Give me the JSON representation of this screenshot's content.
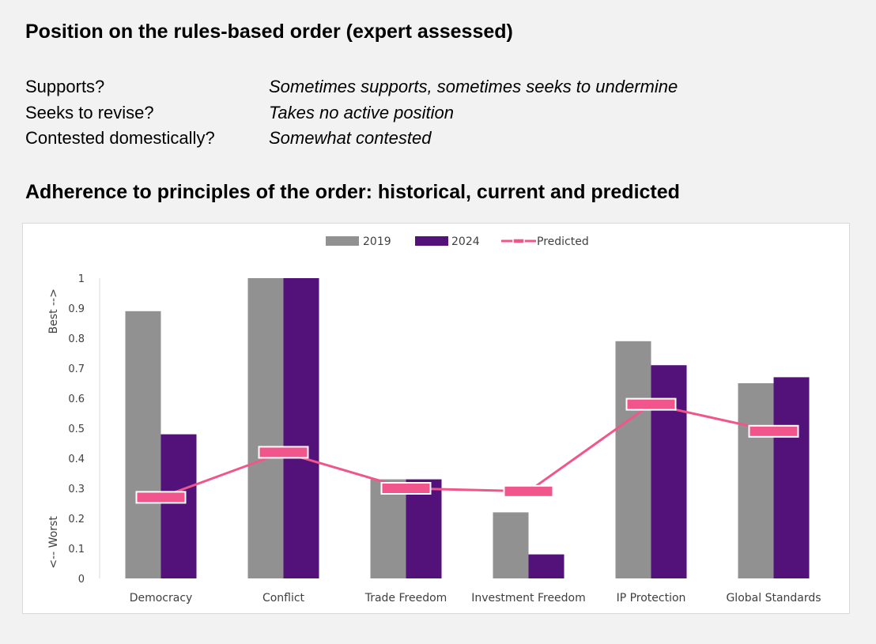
{
  "heading_position": "Position on the rules-based order (expert assessed)",
  "position": [
    {
      "question": "Supports?",
      "answer": "Sometimes supports, sometimes seeks to undermine"
    },
    {
      "question": "Seeks to revise?",
      "answer": "Takes no active position"
    },
    {
      "question": "Contested domestically?",
      "answer": "Somewhat contested"
    }
  ],
  "heading_chart": "Adherence to principles of the order: historical, current and predicted",
  "colors": {
    "series_2019": "#919191",
    "series_2024": "#52127a",
    "predicted": "#f0568c"
  },
  "chart_data": {
    "type": "bar",
    "categories": [
      "Democracy",
      "Conflict",
      "Trade Freedom",
      "Investment Freedom",
      "IP Protection",
      "Global Standards"
    ],
    "series": [
      {
        "name": "2019",
        "values": [
          0.89,
          1.0,
          0.33,
          0.22,
          0.79,
          0.65
        ]
      },
      {
        "name": "2024",
        "values": [
          0.48,
          1.0,
          0.33,
          0.08,
          0.71,
          0.67
        ]
      },
      {
        "name": "Predicted",
        "type": "line",
        "values": [
          0.27,
          0.42,
          0.3,
          0.29,
          0.58,
          0.49
        ]
      }
    ],
    "ylim": [
      0,
      1
    ],
    "yticks": [
      "0",
      "0.1",
      "0.2",
      "0.3",
      "0.4",
      "0.5",
      "0.6",
      "0.7",
      "0.8",
      "0.9",
      "1"
    ],
    "ylabel_top": "Best -->",
    "ylabel_bottom": "<-- Worst",
    "legend_position": "top-center",
    "grid": false
  }
}
